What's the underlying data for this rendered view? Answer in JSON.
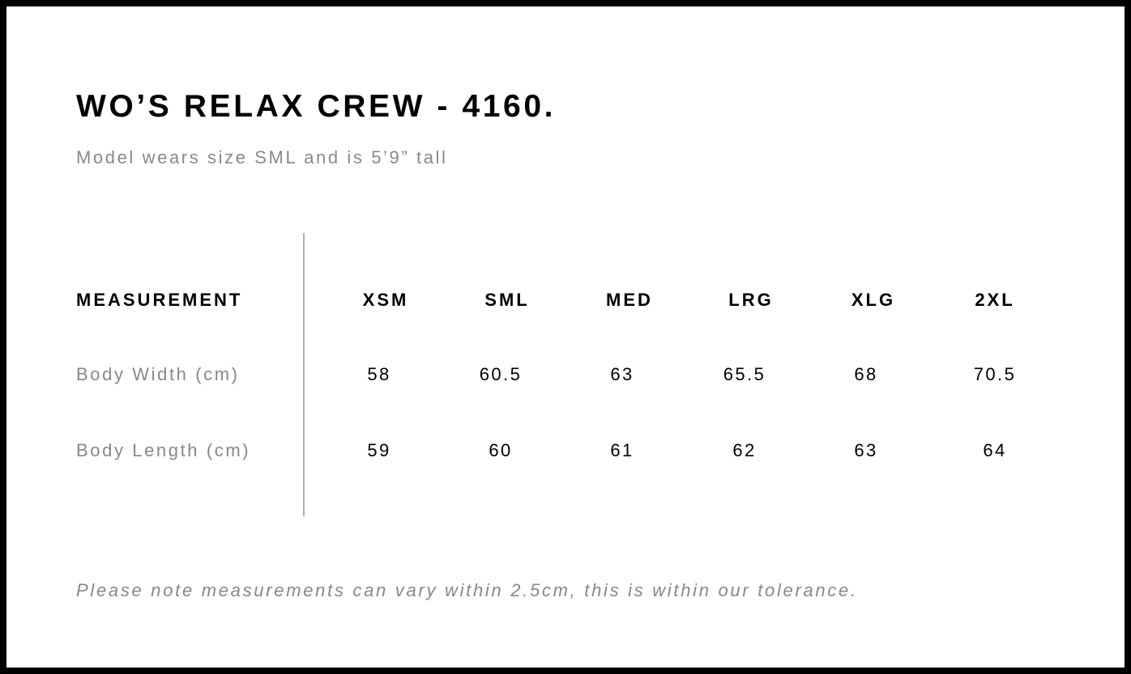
{
  "title": "WO’S RELAX CREW - 4160.",
  "subtitle": "Model wears size SML and is 5’9” tall",
  "table": {
    "header_label": "MEASUREMENT",
    "sizes": [
      "XSM",
      "SML",
      "MED",
      "LRG",
      "XLG",
      "2XL"
    ],
    "rows": [
      {
        "label": "Body Width (cm)",
        "values": [
          "58",
          "60.5",
          "63",
          "65.5",
          "68",
          "70.5"
        ]
      },
      {
        "label": "Body Length (cm)",
        "values": [
          "59",
          "60",
          "61",
          "62",
          "63",
          "64"
        ]
      }
    ]
  },
  "note": "Please note measurements can vary within 2.5cm, this is within our tolerance."
}
